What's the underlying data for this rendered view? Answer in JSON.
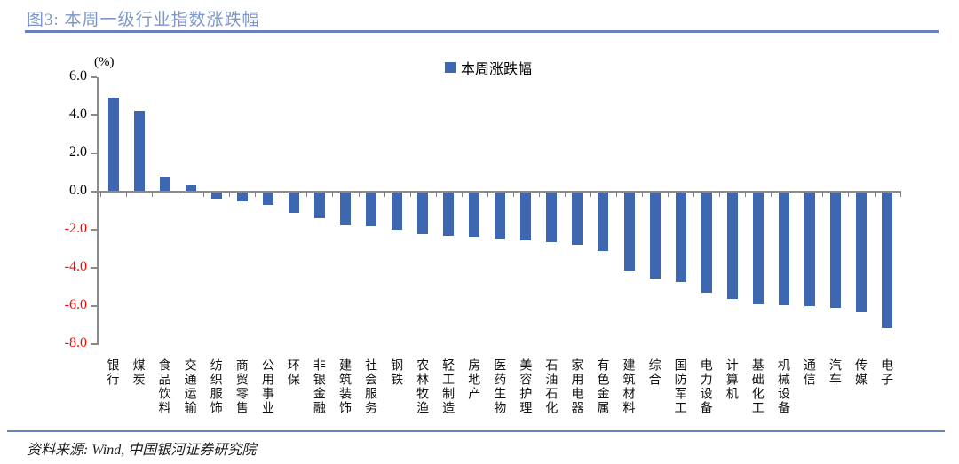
{
  "header": {
    "figure_label": "图3: 本周一级行业指数涨跌幅"
  },
  "footer": {
    "source": "资料来源: Wind, 中国银河证券研究院"
  },
  "colors": {
    "bar": "#3E67B1",
    "title": "#7D95C9",
    "rule": "#6A82BC",
    "axis": "#8A8A8A",
    "negative_tick_label": "#FF0000"
  },
  "chart_data": {
    "type": "bar",
    "title": "图3: 本周一级行业指数涨跌幅",
    "unit_label": "(%)",
    "legend": [
      "本周涨跌幅"
    ],
    "legend_position": "top-center",
    "grid": false,
    "ylim": [
      -8.0,
      6.0
    ],
    "yticks": [
      6.0,
      4.0,
      2.0,
      0.0,
      -2.0,
      -4.0,
      -6.0,
      -8.0
    ],
    "ytick_labels": [
      "6.0",
      "4.0",
      "2.0",
      "0.0",
      "-2.0",
      "-4.0",
      "-6.0",
      "-8.0"
    ],
    "xlabel": "",
    "ylabel": "(%)",
    "categories": [
      "银行",
      "煤炭",
      "食品饮料",
      "交通运输",
      "纺织服饰",
      "商贸零售",
      "公用事业",
      "环保",
      "非银金融",
      "建筑装饰",
      "社会服务",
      "钢铁",
      "农林牧渔",
      "轻工制造",
      "房地产",
      "医药生物",
      "美容护理",
      "石油石化",
      "家用电器",
      "有色金属",
      "建筑材料",
      "综合",
      "国防军工",
      "电力设备",
      "计算机",
      "基础化工",
      "机械设备",
      "通信",
      "汽车",
      "传媒",
      "电子"
    ],
    "values": [
      4.9,
      4.2,
      0.8,
      0.35,
      -0.35,
      -0.5,
      -0.7,
      -1.1,
      -1.4,
      -1.75,
      -1.8,
      -2.0,
      -2.25,
      -2.3,
      -2.35,
      -2.45,
      -2.55,
      -2.65,
      -2.8,
      -3.1,
      -4.15,
      -4.55,
      -4.75,
      -5.3,
      -5.6,
      -5.9,
      -5.95,
      -6.0,
      -6.1,
      -6.3,
      -7.15
    ]
  }
}
